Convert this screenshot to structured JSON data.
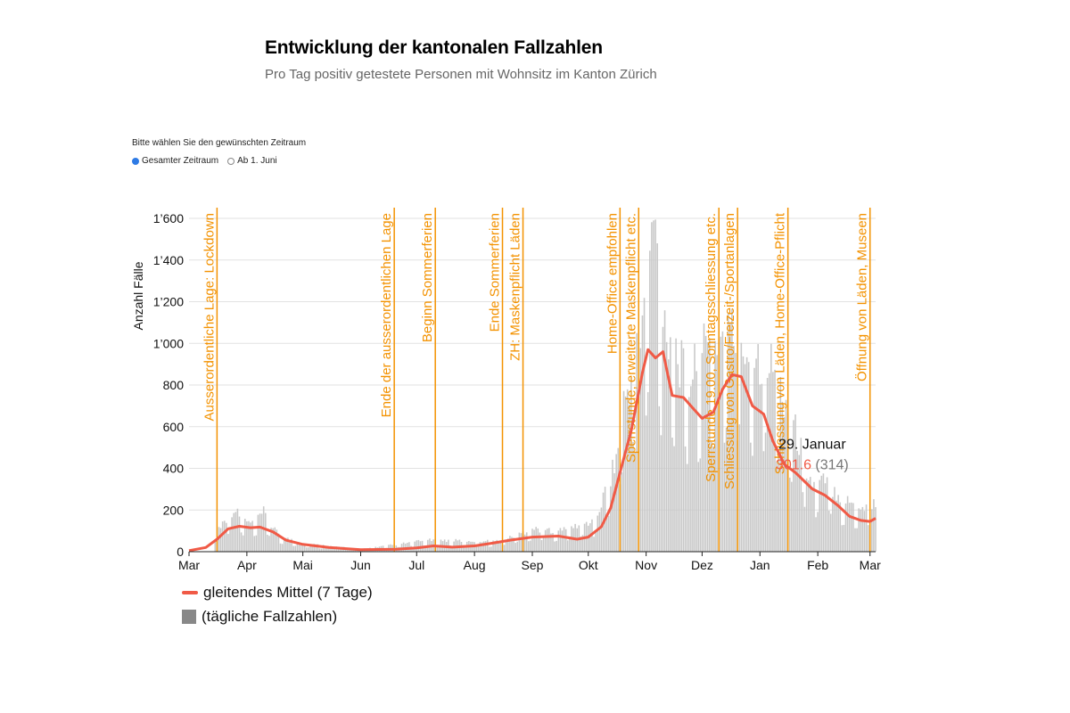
{
  "header": {
    "title": "Entwicklung der kantonalen Fallzahlen",
    "subtitle": "Pro Tag positiv getestete Personen mit Wohnsitz im Kanton Zürich"
  },
  "period_picker": {
    "label": "Bitte wählen Sie den gewünschten Zeitraum",
    "options": [
      {
        "label": "Gesamter Zeitraum",
        "selected": true
      },
      {
        "label": "Ab 1. Juni",
        "selected": false
      }
    ]
  },
  "colors": {
    "mean_line": "#f05a46",
    "bars": "#c8c8c8",
    "events": "#f39200",
    "grid": "#e2e2e2",
    "radio_selected": "#2f7be5"
  },
  "chart_data": {
    "type": "bar",
    "ylabel": "Anzahl Fälle",
    "ylim": [
      0,
      1600
    ],
    "yticks": [
      0,
      200,
      400,
      600,
      800,
      1000,
      1200,
      1400,
      1600
    ],
    "ytick_labels": [
      "0",
      "200",
      "400",
      "600",
      "800",
      "1’000",
      "1’200",
      "1’400",
      "1’600"
    ],
    "x_range": [
      "2020-03-01",
      "2021-03-04"
    ],
    "x_ticks": [
      {
        "date": "2020-03-01",
        "label": "Mar"
      },
      {
        "date": "2020-04-01",
        "label": "Apr"
      },
      {
        "date": "2020-05-01",
        "label": "Mai"
      },
      {
        "date": "2020-06-01",
        "label": "Jun"
      },
      {
        "date": "2020-07-01",
        "label": "Jul"
      },
      {
        "date": "2020-08-01",
        "label": "Aug"
      },
      {
        "date": "2020-09-01",
        "label": "Sep"
      },
      {
        "date": "2020-10-01",
        "label": "Okt"
      },
      {
        "date": "2020-11-01",
        "label": "Nov"
      },
      {
        "date": "2020-12-01",
        "label": "Dez"
      },
      {
        "date": "2021-01-01",
        "label": "Jan"
      },
      {
        "date": "2021-02-01",
        "label": "Feb"
      },
      {
        "date": "2021-03-01",
        "label": "Mar"
      }
    ],
    "events": [
      {
        "date": "2020-03-16",
        "label": "Ausserordentliche Lage: Lockdown"
      },
      {
        "date": "2020-06-19",
        "label": "Ende der ausserordentlichen Lage"
      },
      {
        "date": "2020-07-11",
        "label": "Beginn Sommerferien"
      },
      {
        "date": "2020-08-16",
        "label": "Ende Sommerferien"
      },
      {
        "date": "2020-08-27",
        "label": "ZH: Maskenpflicht Läden"
      },
      {
        "date": "2020-10-18",
        "label": "Home-Office empfohlen"
      },
      {
        "date": "2020-10-28",
        "label": "Sperrstunde, erweiterte Maskenpflicht etc."
      },
      {
        "date": "2020-12-10",
        "label": "Sperrstunde 19.00, Sonntagsschliessung etc."
      },
      {
        "date": "2020-12-20",
        "label": "Schliessung von Gastro/Freizeit-/Sportanlagen"
      },
      {
        "date": "2021-01-16",
        "label": "Schliessung von Läden, Home-Office-Pflicht"
      },
      {
        "date": "2021-03-01",
        "label": "Öffnung von Läden, Museen"
      }
    ],
    "series": [
      {
        "name": "gleitendes Mittel (7 Tage)",
        "type": "line",
        "points": [
          [
            "2020-03-01",
            5
          ],
          [
            "2020-03-10",
            20
          ],
          [
            "2020-03-16",
            60
          ],
          [
            "2020-03-22",
            110
          ],
          [
            "2020-03-28",
            122
          ],
          [
            "2020-04-03",
            115
          ],
          [
            "2020-04-08",
            118
          ],
          [
            "2020-04-15",
            95
          ],
          [
            "2020-04-22",
            55
          ],
          [
            "2020-05-01",
            35
          ],
          [
            "2020-05-15",
            20
          ],
          [
            "2020-06-01",
            10
          ],
          [
            "2020-06-20",
            12
          ],
          [
            "2020-07-01",
            18
          ],
          [
            "2020-07-10",
            28
          ],
          [
            "2020-07-20",
            22
          ],
          [
            "2020-08-01",
            28
          ],
          [
            "2020-08-10",
            40
          ],
          [
            "2020-08-20",
            55
          ],
          [
            "2020-09-01",
            70
          ],
          [
            "2020-09-15",
            75
          ],
          [
            "2020-09-25",
            60
          ],
          [
            "2020-10-01",
            70
          ],
          [
            "2020-10-08",
            120
          ],
          [
            "2020-10-13",
            210
          ],
          [
            "2020-10-18",
            380
          ],
          [
            "2020-10-24",
            580
          ],
          [
            "2020-10-30",
            860
          ],
          [
            "2020-11-02",
            970
          ],
          [
            "2020-11-06",
            930
          ],
          [
            "2020-11-10",
            960
          ],
          [
            "2020-11-15",
            750
          ],
          [
            "2020-11-21",
            740
          ],
          [
            "2020-11-27",
            680
          ],
          [
            "2020-12-01",
            640
          ],
          [
            "2020-12-07",
            670
          ],
          [
            "2020-12-12",
            780
          ],
          [
            "2020-12-17",
            850
          ],
          [
            "2020-12-22",
            840
          ],
          [
            "2020-12-28",
            700
          ],
          [
            "2021-01-03",
            660
          ],
          [
            "2021-01-08",
            530
          ],
          [
            "2021-01-14",
            420
          ],
          [
            "2021-01-20",
            380
          ],
          [
            "2021-01-29",
            301.6
          ],
          [
            "2021-02-05",
            270
          ],
          [
            "2021-02-12",
            220
          ],
          [
            "2021-02-18",
            170
          ],
          [
            "2021-02-24",
            150
          ],
          [
            "2021-03-01",
            145
          ],
          [
            "2021-03-04",
            160
          ]
        ]
      },
      {
        "name": "(tägliche Fallzahlen)",
        "type": "bar",
        "points": [
          [
            "2020-03-15",
            90
          ],
          [
            "2020-03-20",
            150
          ],
          [
            "2020-03-25",
            205
          ],
          [
            "2020-03-30",
            150
          ],
          [
            "2020-04-05",
            130
          ],
          [
            "2020-04-10",
            190
          ],
          [
            "2020-04-15",
            110
          ],
          [
            "2020-04-20",
            70
          ],
          [
            "2020-05-01",
            40
          ],
          [
            "2020-06-01",
            12
          ],
          [
            "2020-07-07",
            55
          ],
          [
            "2020-08-15",
            50
          ],
          [
            "2020-09-01",
            110
          ],
          [
            "2020-09-15",
            100
          ],
          [
            "2020-10-05",
            150
          ],
          [
            "2020-10-16",
            450
          ],
          [
            "2020-10-20",
            720
          ],
          [
            "2020-10-26",
            900
          ],
          [
            "2020-10-30",
            1100
          ],
          [
            "2020-11-02",
            1290
          ],
          [
            "2020-11-05",
            1640
          ],
          [
            "2020-11-09",
            1150
          ],
          [
            "2020-11-16",
            1000
          ],
          [
            "2020-11-23",
            800
          ],
          [
            "2020-12-01",
            950
          ],
          [
            "2020-12-08",
            1000
          ],
          [
            "2020-12-15",
            1070
          ],
          [
            "2020-12-21",
            1000
          ],
          [
            "2020-12-28",
            950
          ],
          [
            "2021-01-05",
            930
          ],
          [
            "2021-01-12",
            800
          ],
          [
            "2021-01-20",
            580
          ],
          [
            "2021-01-29",
            314
          ],
          [
            "2021-02-05",
            340
          ],
          [
            "2021-02-15",
            250
          ],
          [
            "2021-02-25",
            210
          ],
          [
            "2021-03-03",
            235
          ]
        ]
      }
    ],
    "tooltip": {
      "date": "2021-01-29",
      "label": "29. Januar",
      "mean": "301.6",
      "daily": "(314)"
    },
    "legend": {
      "placement": "bottom-left",
      "items": [
        "gleitendes Mittel (7 Tage)",
        "(tägliche Fallzahlen)"
      ]
    }
  }
}
